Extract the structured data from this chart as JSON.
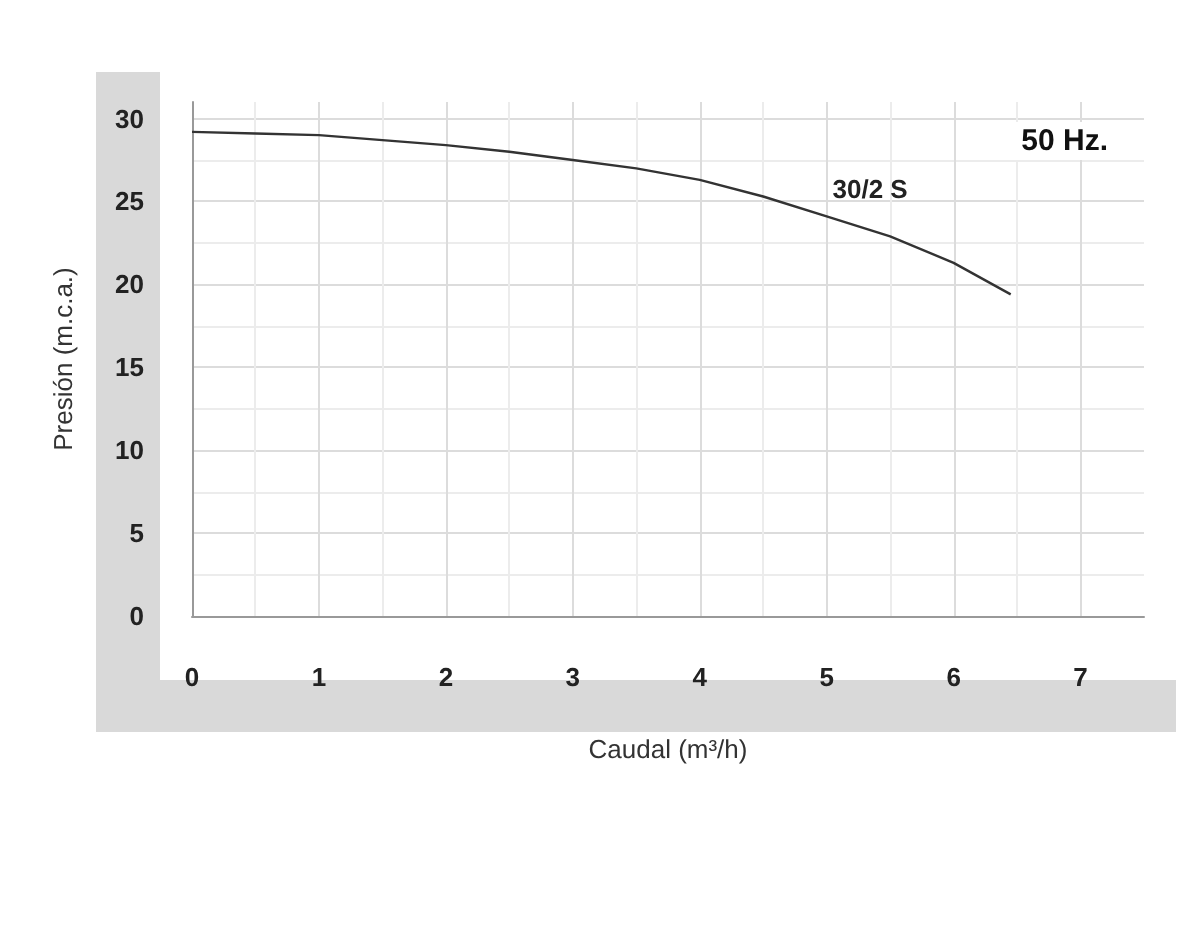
{
  "chart_data": {
    "type": "line",
    "xlabel": "Caudal (m³/h)",
    "ylabel": "Presión (m.c.a.)",
    "xlim": [
      0,
      7.5
    ],
    "ylim": [
      0,
      31
    ],
    "xticks": [
      0,
      1,
      2,
      3,
      4,
      5,
      6,
      7
    ],
    "yticks": [
      0,
      5,
      10,
      15,
      20,
      25,
      30
    ],
    "grid": true,
    "marker": "none",
    "line_style": "solid",
    "annotations": [
      "50 Hz."
    ],
    "series": [
      {
        "name": "30/2 S",
        "color": "#333333",
        "x": [
          0,
          0.5,
          1,
          1.5,
          2,
          2.5,
          3,
          3.5,
          4,
          4.5,
          5,
          5.5,
          6,
          6.45
        ],
        "values": [
          29.2,
          29.1,
          29.0,
          28.7,
          28.4,
          28.0,
          27.5,
          27.0,
          26.3,
          25.3,
          24.1,
          22.9,
          21.3,
          19.4
        ]
      }
    ]
  }
}
